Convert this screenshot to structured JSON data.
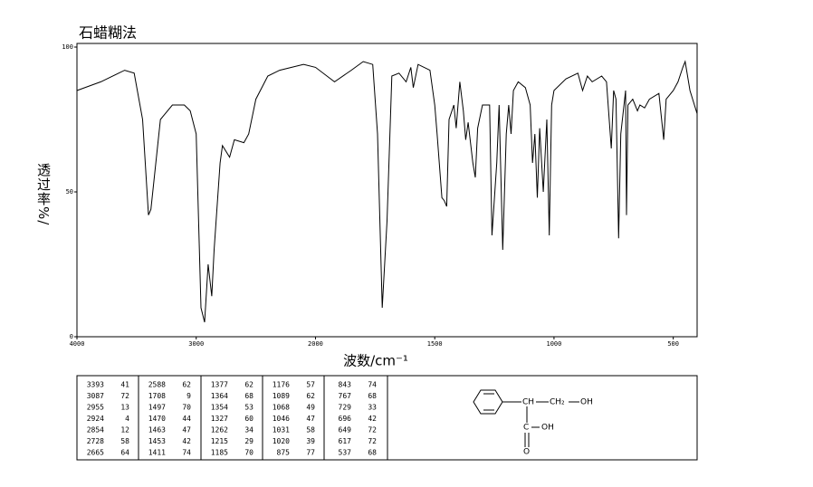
{
  "chart_data": {
    "type": "line",
    "title": "石蜡糊法",
    "xlabel": "波数/cm⁻¹",
    "ylabel": "透过率%/",
    "x": [
      4000,
      3800,
      3600,
      3520,
      3450,
      3400,
      3380,
      3300,
      3200,
      3100,
      3050,
      3000,
      2960,
      2930,
      2900,
      2870,
      2850,
      2800,
      2780,
      2720,
      2680,
      2600,
      2560,
      2500,
      2400,
      2300,
      2200,
      2100,
      2000,
      1920,
      1850,
      1800,
      1760,
      1740,
      1720,
      1700,
      1680,
      1650,
      1620,
      1600,
      1590,
      1570,
      1520,
      1500,
      1490,
      1470,
      1460,
      1450,
      1440,
      1420,
      1410,
      1395,
      1380,
      1370,
      1360,
      1340,
      1330,
      1320,
      1300,
      1270,
      1260,
      1240,
      1230,
      1215,
      1200,
      1190,
      1180,
      1170,
      1150,
      1120,
      1100,
      1090,
      1080,
      1070,
      1060,
      1045,
      1030,
      1020,
      1010,
      1000,
      950,
      900,
      880,
      860,
      840,
      800,
      780,
      760,
      750,
      740,
      729,
      720,
      700,
      696,
      690,
      670,
      650,
      640,
      620,
      600,
      560,
      540,
      530,
      500,
      480,
      460,
      450,
      430,
      400
    ],
    "series": [
      {
        "color": "#000000",
        "values": [
          85,
          88,
          92,
          91,
          75,
          42,
          44,
          75,
          80,
          80,
          78,
          70,
          10,
          5,
          25,
          14,
          30,
          60,
          66,
          62,
          68,
          67,
          70,
          82,
          90,
          92,
          93,
          94,
          93,
          88,
          92,
          95,
          94,
          70,
          10,
          40,
          90,
          91,
          88,
          93,
          86,
          94,
          92,
          80,
          70,
          48,
          47,
          45,
          75,
          80,
          72,
          88,
          78,
          68,
          74,
          60,
          55,
          72,
          80,
          80,
          35,
          60,
          80,
          30,
          70,
          80,
          70,
          85,
          88,
          86,
          80,
          60,
          70,
          48,
          72,
          50,
          75,
          35,
          80,
          85,
          89,
          91,
          85,
          90,
          88,
          90,
          88,
          65,
          85,
          82,
          34,
          70,
          85,
          42,
          80,
          82,
          78,
          80,
          79,
          82,
          84,
          68,
          82,
          85,
          88,
          93,
          95,
          85,
          77
        ]
      }
    ],
    "xlim": [
      4000,
      400
    ],
    "x_scale_change": {
      "at": 2000,
      "factor": 2
    },
    "xticks": [
      4000,
      3000,
      2000,
      1500,
      1000,
      500
    ],
    "ylim": [
      0,
      100
    ],
    "yticks": [
      0,
      50,
      100
    ]
  },
  "peak_table": {
    "columns": [
      [
        [
          3393,
          41
        ],
        [
          3087,
          72
        ],
        [
          2955,
          13
        ],
        [
          2924,
          4
        ],
        [
          2854,
          12
        ],
        [
          2728,
          58
        ],
        [
          2665,
          64
        ]
      ],
      [
        [
          2588,
          62
        ],
        [
          1708,
          9
        ],
        [
          1497,
          70
        ],
        [
          1470,
          44
        ],
        [
          1463,
          47
        ],
        [
          1453,
          42
        ],
        [
          1411,
          74
        ]
      ],
      [
        [
          1377,
          62
        ],
        [
          1364,
          68
        ],
        [
          1354,
          53
        ],
        [
          1327,
          60
        ],
        [
          1262,
          34
        ],
        [
          1215,
          29
        ],
        [
          1185,
          70
        ]
      ],
      [
        [
          1176,
          57
        ],
        [
          1089,
          62
        ],
        [
          1068,
          49
        ],
        [
          1046,
          47
        ],
        [
          1031,
          58
        ],
        [
          1020,
          39
        ],
        [
          875,
          77
        ]
      ],
      [
        [
          843,
          74
        ],
        [
          767,
          68
        ],
        [
          729,
          33
        ],
        [
          696,
          42
        ],
        [
          649,
          72
        ],
        [
          617,
          72
        ],
        [
          537,
          68
        ]
      ]
    ]
  },
  "structure": {
    "labels": [
      "CH",
      "CH₂",
      "OH",
      "C",
      "OH",
      "O"
    ]
  }
}
